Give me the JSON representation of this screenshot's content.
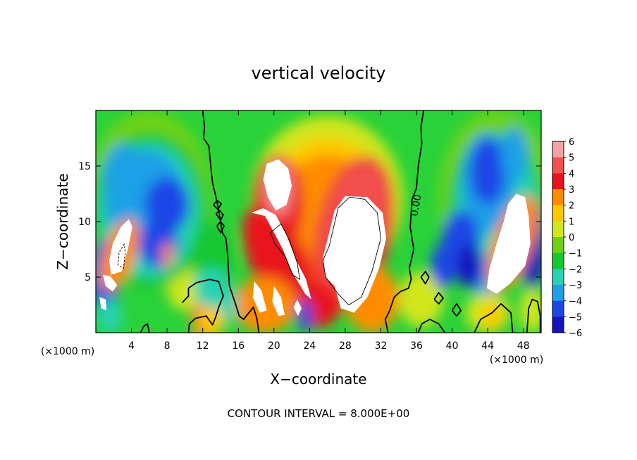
{
  "chart_data": {
    "type": "heatmap",
    "title": "vertical velocity",
    "xlabel": "X−coordinate",
    "ylabel": "Z−coordinate",
    "x_unit": "(×1000 m)",
    "y_unit": "(×1000 m)",
    "xlim": [
      0,
      50
    ],
    "ylim": [
      0,
      20
    ],
    "x_ticks": [
      4,
      8,
      12,
      16,
      20,
      24,
      28,
      32,
      36,
      40,
      44,
      48
    ],
    "y_ticks": [
      5,
      10,
      15
    ],
    "colorbar": {
      "min": -6,
      "max": 6,
      "ticks": [
        6,
        5,
        4,
        3,
        2,
        1,
        0,
        -1,
        -2,
        -3,
        -4,
        -5,
        -6
      ],
      "tick_labels": [
        "6",
        "5",
        "4",
        "3",
        "2",
        "1",
        "0",
        "−1",
        "−2",
        "−3",
        "−4",
        "−5",
        "−6"
      ],
      "colors": [
        "#f4a3a3",
        "#f25050",
        "#e8121e",
        "#ff8c00",
        "#ffc800",
        "#d2e61e",
        "#6ed214",
        "#14c832",
        "#28d2b4",
        "#1ea0e6",
        "#1e46e6",
        "#1414be",
        "#6e0aa0"
      ]
    },
    "zero_contour_label": "0.00",
    "annotation": "CONTOUR INTERVAL = 8.000E+00",
    "field_features": [
      {
        "kind": "updraft",
        "x": 21,
        "z": 12,
        "value": 6
      },
      {
        "kind": "updraft",
        "x": 29,
        "z": 9,
        "value": 6
      },
      {
        "kind": "updraft",
        "x": 21,
        "z": 5,
        "value": 6
      },
      {
        "kind": "updraft",
        "x": 2,
        "z": 6,
        "value": 6
      },
      {
        "kind": "updraft",
        "x": 47,
        "z": 8,
        "value": 6
      },
      {
        "kind": "downdraft",
        "x": 8,
        "z": 11,
        "value": -5
      },
      {
        "kind": "downdraft",
        "x": 3,
        "z": 13,
        "value": -4
      },
      {
        "kind": "downdraft",
        "x": 44,
        "z": 14,
        "value": -5
      },
      {
        "kind": "downdraft",
        "x": 47,
        "z": 15,
        "value": -4
      },
      {
        "kind": "downdraft",
        "x": 23.5,
        "z": 1.5,
        "value": -4
      },
      {
        "kind": "weak-updraft",
        "x": 44,
        "z": 2,
        "value": 1
      }
    ]
  }
}
